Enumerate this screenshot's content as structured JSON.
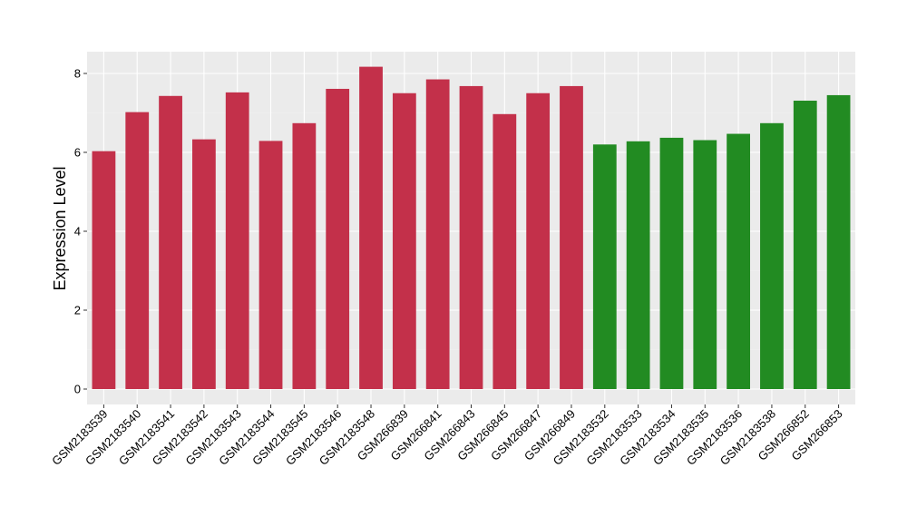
{
  "chart_data": {
    "type": "bar",
    "title": "",
    "xlabel": "",
    "ylabel": "Expression Level",
    "ylim": [
      0,
      8.6
    ],
    "yticks": [
      0,
      2,
      4,
      6,
      8
    ],
    "grid": true,
    "legend": "none",
    "colors": {
      "group_a": "#c3304a",
      "group_b": "#228b22",
      "panel_bg": "#ebebeb",
      "grid_major": "#ffffff",
      "grid_minor": "#f2f2f2"
    },
    "categories": [
      "GSM2183539",
      "GSM2183540",
      "GSM2183541",
      "GSM2183542",
      "GSM2183543",
      "GSM2183544",
      "GSM2183545",
      "GSM2183546",
      "GSM2183548",
      "GSM266839",
      "GSM266841",
      "GSM266843",
      "GSM266845",
      "GSM266847",
      "GSM266849",
      "GSM2183532",
      "GSM2183533",
      "GSM2183534",
      "GSM2183535",
      "GSM2183536",
      "GSM2183538",
      "GSM266852",
      "GSM266853"
    ],
    "values": [
      6.03,
      7.02,
      7.43,
      6.33,
      7.52,
      6.29,
      6.74,
      7.61,
      8.17,
      7.5,
      7.85,
      7.68,
      6.97,
      7.5,
      7.68,
      6.2,
      6.28,
      6.37,
      6.31,
      6.47,
      6.74,
      7.31,
      7.45
    ],
    "groups": [
      "a",
      "a",
      "a",
      "a",
      "a",
      "a",
      "a",
      "a",
      "a",
      "a",
      "a",
      "a",
      "a",
      "a",
      "a",
      "b",
      "b",
      "b",
      "b",
      "b",
      "b",
      "b",
      "b"
    ]
  }
}
